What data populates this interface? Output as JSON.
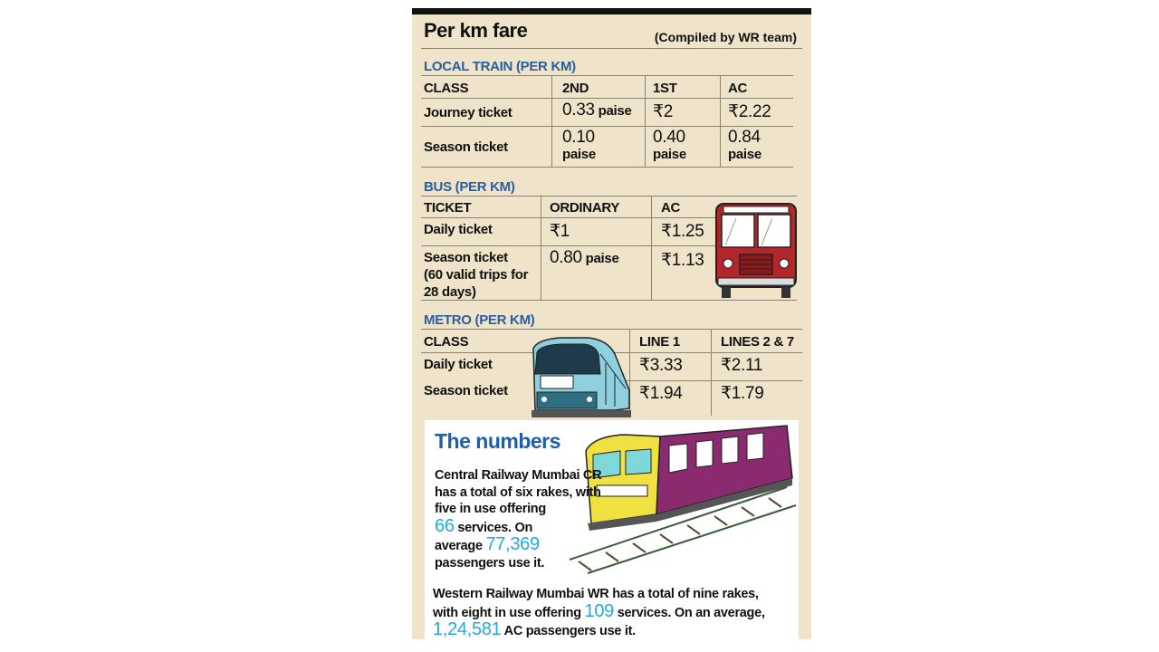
{
  "header": {
    "title": "Per km fare",
    "credit": "(Compiled by WR team)"
  },
  "local_train": {
    "section": "LOCAL TRAIN (PER KM)",
    "columns": [
      "CLASS",
      "2ND",
      "1ST",
      "AC"
    ],
    "journey": {
      "label": "Journey ticket",
      "second": "0.33",
      "second_unit": "paise",
      "first": "₹2",
      "ac": "₹2.22"
    },
    "season": {
      "label": "Season ticket",
      "second": "0.10",
      "second_unit": "paise",
      "first": "0.40",
      "first_unit": "paise",
      "ac": "0.84",
      "ac_unit": "paise"
    }
  },
  "bus": {
    "section": "BUS (PER KM)",
    "columns": [
      "TICKET",
      "ORDINARY",
      "AC"
    ],
    "daily": {
      "label": "Daily ticket",
      "ordinary": "₹1",
      "ac": "₹1.25"
    },
    "season": {
      "label_1": "Season ticket",
      "label_2": "(60 valid trips for",
      "label_3": "28 days)",
      "ordinary": "0.80",
      "ordinary_unit": "paise",
      "ac": "₹1.13"
    }
  },
  "metro": {
    "section": "METRO (PER KM)",
    "columns": [
      "CLASS",
      "LINE 1",
      "LINES 2 & 7"
    ],
    "daily": {
      "label": "Daily ticket",
      "line1": "₹3.33",
      "line27": "₹2.11"
    },
    "season": {
      "label": "Season ticket",
      "line1": "₹1.94",
      "line27": "₹1.79"
    }
  },
  "numbers": {
    "title": "The numbers",
    "cr": {
      "l1": "Central Railway Mumbai CR",
      "l2": "has a total of six rakes, with",
      "l3": "five in use offering",
      "n1": "66",
      "l4": " services. On",
      "l5": "average ",
      "n2": "77,369",
      "l6": "passengers use it."
    },
    "wr": {
      "l1": "Western Railway Mumbai WR has a total of nine rakes,",
      "l2a": "with eight in use offering ",
      "n1": "109",
      "l2b": " services. On an average,",
      "n2": "1,24,581",
      "l3": " AC passengers use it."
    }
  },
  "colors": {
    "section": "#2b5e9e",
    "highlight": "#27a8d8",
    "panel": "#efe4c9"
  },
  "icons": [
    "bus-illustration",
    "metro-train-illustration",
    "local-train-illustration"
  ]
}
